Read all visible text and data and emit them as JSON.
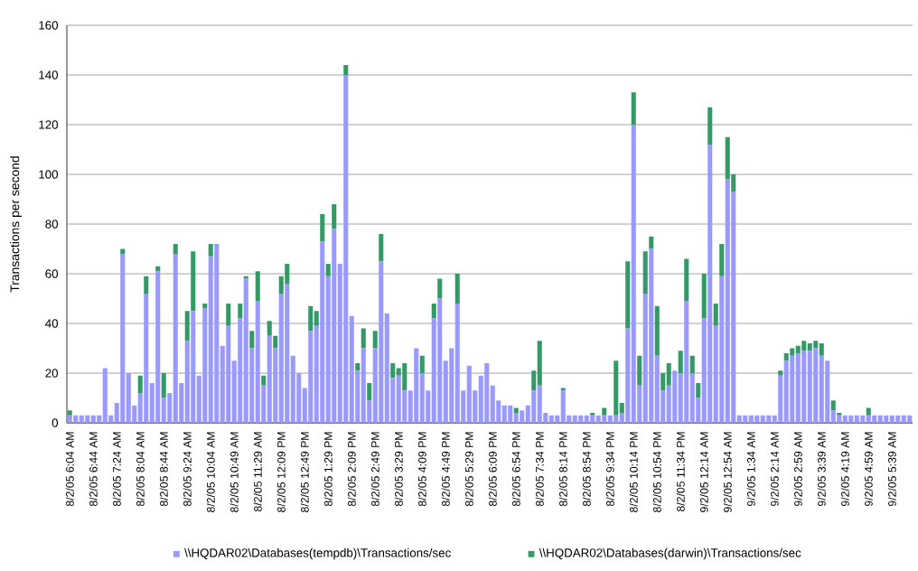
{
  "chart_data": {
    "type": "bar",
    "stacked": true,
    "ylabel": "Transactions per second",
    "categories": [
      "8/2/05 6:04 AM",
      null,
      null,
      null,
      "8/2/05 6:44 AM",
      null,
      null,
      null,
      "8/2/05 7:24 AM",
      null,
      null,
      null,
      "8/2/05 8:04 AM",
      null,
      null,
      null,
      "8/2/05 8:44 AM",
      null,
      null,
      null,
      "8/2/05 9:24 AM",
      null,
      null,
      null,
      "8/2/05 10:04 AM",
      null,
      null,
      null,
      "8/2/05 10:49 AM",
      null,
      null,
      null,
      "8/2/05 11:29 AM",
      null,
      null,
      null,
      "8/2/05 12:09 PM",
      null,
      null,
      null,
      "8/2/05 12:49 PM",
      null,
      null,
      null,
      "8/2/05 1:29 PM",
      null,
      null,
      null,
      "8/2/05 2:09 PM",
      null,
      null,
      null,
      "8/2/05 2:49 PM",
      null,
      null,
      null,
      "8/2/05 3:29 PM",
      null,
      null,
      null,
      "8/2/05 4:09 PM",
      null,
      null,
      null,
      "8/2/05 4:49 PM",
      null,
      null,
      null,
      "8/2/05 5:29 PM",
      null,
      null,
      null,
      "8/2/05 6:09 PM",
      null,
      null,
      null,
      "8/2/05 6:54 PM",
      null,
      null,
      null,
      "8/2/05 7:34 PM",
      null,
      null,
      null,
      "8/2/05 8:14 PM",
      null,
      null,
      null,
      "8/2/05 8:54 PM",
      null,
      null,
      null,
      "8/2/05 9:34 PM",
      null,
      null,
      null,
      "8/2/05 10:14 PM",
      null,
      null,
      null,
      "8/2/05 10:54 PM",
      null,
      null,
      null,
      "8/2/05 11:34 PM",
      null,
      null,
      null,
      "9/2/05 12:14 AM",
      null,
      null,
      null,
      "9/2/05 12:54 AM",
      null,
      null,
      null,
      "9/2/05 1:34 AM",
      null,
      null,
      null,
      "9/2/05 2:14 AM",
      null,
      null,
      null,
      "9/2/05 2:59 AM",
      null,
      null,
      null,
      "9/2/05 3:39 AM",
      null,
      null,
      null,
      "9/2/05 4:19 AM",
      null,
      null,
      null,
      "9/2/05 4:59 AM",
      null,
      null,
      null,
      "9/2/05 5:39 AM",
      null,
      null,
      null
    ],
    "series": [
      {
        "name": "\\\\HQDAR02\\Databases(tempdb)\\Transactions/sec",
        "color": "#9999ff",
        "values": [
          3,
          3,
          3,
          3,
          3,
          3,
          22,
          3,
          8,
          68,
          20,
          7,
          12,
          52,
          16,
          61,
          10,
          12,
          68,
          16,
          33,
          45,
          19,
          46,
          67,
          72,
          31,
          39,
          25,
          42,
          58,
          30,
          49,
          15,
          35,
          30,
          52,
          56,
          27,
          20,
          14,
          37,
          39,
          73,
          59,
          78,
          64,
          140,
          43,
          21,
          30,
          9,
          30,
          65,
          44,
          18,
          19,
          13,
          13,
          30,
          20,
          13,
          42,
          50,
          25,
          30,
          48,
          13,
          23,
          13,
          19,
          24,
          15,
          9,
          7,
          7,
          4,
          5,
          7,
          13,
          15,
          4,
          3,
          3,
          13,
          3,
          3,
          3,
          3,
          3,
          3,
          3,
          3,
          3,
          4,
          38,
          120,
          15,
          52,
          70,
          27,
          13,
          15,
          21,
          20,
          49,
          20,
          10,
          42,
          112,
          39,
          59,
          98,
          93,
          3,
          3,
          3,
          3,
          3,
          3,
          3,
          19,
          25,
          27,
          28,
          29,
          29,
          30,
          27,
          25,
          5,
          3,
          3,
          3,
          3,
          3,
          3,
          3,
          3,
          3,
          3,
          3,
          3,
          3
        ]
      },
      {
        "name": "\\\\HQDAR02\\Databases(darwin)\\Transactions/sec",
        "color": "#339966",
        "values": [
          2,
          0,
          0,
          0,
          0,
          0,
          0,
          0,
          0,
          2,
          0,
          0,
          7,
          7,
          0,
          2,
          10,
          0,
          4,
          0,
          12,
          24,
          0,
          2,
          5,
          0,
          0,
          9,
          0,
          6,
          1,
          7,
          12,
          4,
          6,
          5,
          7,
          8,
          0,
          0,
          0,
          10,
          6,
          11,
          5,
          10,
          0,
          4,
          0,
          3,
          8,
          7,
          7,
          11,
          0,
          6,
          3,
          11,
          0,
          0,
          7,
          0,
          6,
          8,
          0,
          0,
          12,
          0,
          0,
          0,
          0,
          0,
          0,
          0,
          0,
          0,
          2,
          0,
          0,
          8,
          18,
          0,
          0,
          0,
          1,
          0,
          0,
          0,
          0,
          1,
          0,
          3,
          0,
          22,
          4,
          27,
          13,
          12,
          17,
          5,
          20,
          7,
          9,
          0,
          9,
          17,
          7,
          6,
          18,
          15,
          9,
          13,
          17,
          7,
          0,
          0,
          0,
          0,
          0,
          0,
          0,
          2,
          3,
          3,
          3,
          4,
          3,
          3,
          5,
          0,
          4,
          1,
          0,
          0,
          0,
          0,
          3,
          0,
          0,
          0,
          0,
          0,
          0,
          0
        ]
      }
    ],
    "ylim": [
      0,
      160
    ],
    "yticks": [
      0,
      20,
      40,
      60,
      80,
      100,
      120,
      140,
      160
    ],
    "grid": "y",
    "legend": "bottom"
  }
}
